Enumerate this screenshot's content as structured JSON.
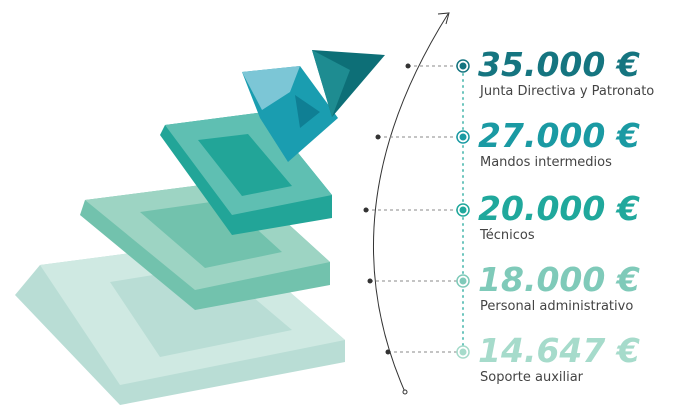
{
  "items": [
    {
      "amount": "35.000 €",
      "label": "Junta Directiva y Patronato"
    },
    {
      "amount": "27.000 €",
      "label": "Mandos intermedios"
    },
    {
      "amount": "20.000 €",
      "label": "Técnicos"
    },
    {
      "amount": "18.000 €",
      "label": "Personal administrativo"
    },
    {
      "amount": "14.647 €",
      "label": "Soporte auxiliar"
    }
  ]
}
